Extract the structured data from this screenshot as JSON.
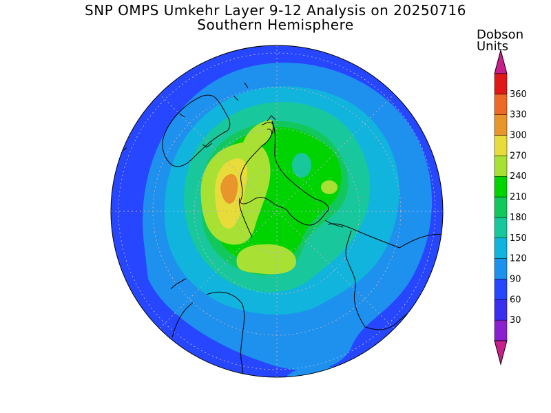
{
  "title": {
    "line1": "SNP OMPS Umkehr Layer 9-12 Analysis on 20250716",
    "line2": "Southern Hemisphere"
  },
  "legend": {
    "unit_line1": "Dobson",
    "unit_line2": "Units",
    "ticks": [
      "30",
      "60",
      "90",
      "120",
      "150",
      "180",
      "210",
      "240",
      "270",
      "300",
      "330",
      "360"
    ],
    "colors": [
      "#8a1fd0",
      "#3a2ef0",
      "#2646ff",
      "#1e90ee",
      "#10b4dc",
      "#18c89c",
      "#12c85c",
      "#00d400",
      "#a8e034",
      "#e8dc3a",
      "#e8962c",
      "#ee6a24",
      "#e01818"
    ],
    "low_arrow_color": "#c8208a",
    "high_arrow_color": "#c8208a"
  },
  "map": {
    "projection": "south-polar-stereographic",
    "gridlines": "dotted",
    "field_levels_du": [
      60,
      90,
      120,
      150,
      180,
      210,
      240,
      270
    ]
  }
}
